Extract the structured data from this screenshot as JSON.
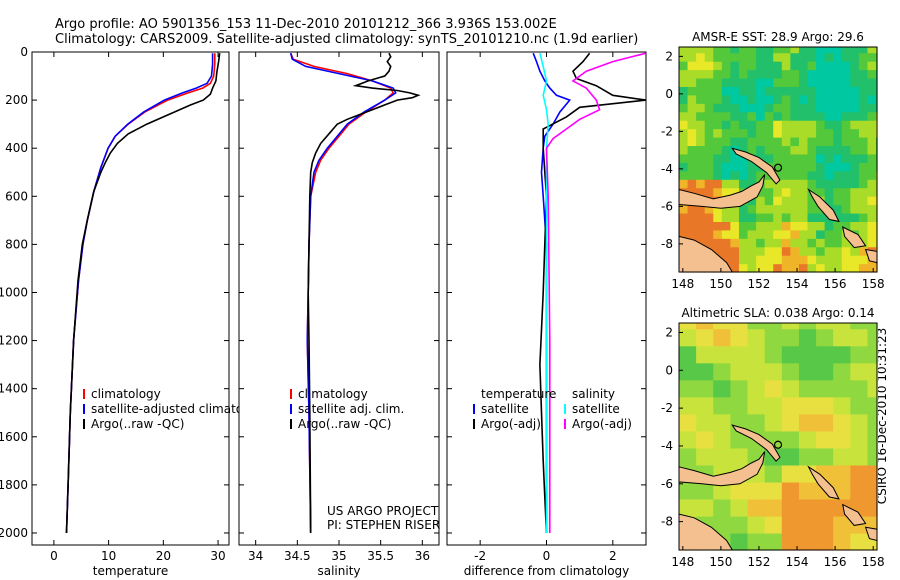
{
  "header": {
    "line1": "Argo profile: AO 5901356_153 11-Dec-2010 20101212_366 3.936S 153.002E",
    "line2": "Climatology: CARS2009. Satellite-adjusted climatology: synTS_20101210.nc (1.9d earlier)"
  },
  "colors": {
    "climatology": "#ff0000",
    "satellite": "#0000ff",
    "argo": "#000000",
    "satellite_diff": "#00ffff",
    "argo_adj_diff": "#ff00ff",
    "land": "#f4c090",
    "coast": "#000000"
  },
  "credit": "CSIRO 16-Dec-2010 10:31:23",
  "chart_data": [
    {
      "id": "temperature",
      "type": "line",
      "xlabel": "temperature",
      "ylabel": "",
      "xlim": [
        -4,
        32
      ],
      "ylim": [
        2050,
        0
      ],
      "xticks": [
        0,
        10,
        20,
        30
      ],
      "yticks": [
        0,
        200,
        400,
        600,
        800,
        1000,
        1200,
        1400,
        1600,
        1800,
        2000
      ],
      "legend": [
        "climatology",
        "satellite-adjusted climatology",
        "Argo(..raw -QC)"
      ],
      "legend_position": "lower-right",
      "series": [
        {
          "name": "climatology",
          "color": "#ff0000",
          "x": [
            29.4,
            29.4,
            29.2,
            28.6,
            27.2,
            24.5,
            20.8,
            16.6,
            13.6,
            11.2,
            9.9,
            8.6,
            7.3,
            6.1,
            5.3,
            4.5,
            3.6,
            3.0,
            2.6,
            2.3
          ],
          "y": [
            5,
            50,
            100,
            130,
            150,
            170,
            200,
            250,
            300,
            350,
            400,
            480,
            580,
            700,
            800,
            950,
            1200,
            1500,
            1800,
            2000
          ]
        },
        {
          "name": "satellite-adjusted climatology",
          "color": "#0000ff",
          "x": [
            29.0,
            29.0,
            28.8,
            28.0,
            26.0,
            23.5,
            20.2,
            16.4,
            13.5,
            11.2,
            9.9,
            8.6,
            7.3,
            6.1,
            5.3,
            4.5,
            3.6,
            3.0,
            2.6,
            2.3
          ],
          "y": [
            5,
            50,
            100,
            130,
            150,
            170,
            200,
            250,
            300,
            350,
            400,
            480,
            580,
            700,
            800,
            950,
            1200,
            1500,
            1800,
            2000
          ]
        },
        {
          "name": "Argo(..raw -QC)",
          "color": "#000000",
          "x": [
            30.3,
            30.1,
            29.8,
            29.6,
            29.0,
            28.6,
            27.3,
            25.0,
            21.0,
            17.0,
            13.6,
            11.6,
            10.3,
            9.4,
            8.6,
            7.3,
            6.1,
            5.2,
            4.4,
            3.6,
            3.0,
            2.6,
            2.3
          ],
          "y": [
            5,
            40,
            80,
            120,
            150,
            175,
            200,
            220,
            260,
            300,
            340,
            380,
            420,
            460,
            500,
            580,
            700,
            800,
            950,
            1200,
            1500,
            1800,
            2000
          ]
        }
      ]
    },
    {
      "id": "salinity",
      "type": "line",
      "xlabel": "salinity",
      "ylabel": "",
      "xlim": [
        33.8,
        36.2
      ],
      "ylim": [
        2050,
        0
      ],
      "xticks": [
        34,
        34.5,
        35,
        35.5,
        36
      ],
      "legend": [
        "climatology",
        "satellite adj. clim.",
        "Argo(..raw -QC)"
      ],
      "legend_position": "lower-right",
      "annotation": [
        "US ARGO PROJECT",
        "PI: STEPHEN RISER"
      ],
      "series": [
        {
          "name": "climatology",
          "color": "#ff0000",
          "x": [
            34.42,
            34.45,
            34.7,
            35.1,
            35.4,
            35.62,
            35.65,
            35.55,
            35.32,
            35.12,
            35.0,
            34.88,
            34.78,
            34.72,
            34.66,
            34.64,
            34.63,
            34.62,
            34.64,
            34.66
          ],
          "y": [
            5,
            30,
            60,
            90,
            120,
            150,
            170,
            200,
            250,
            300,
            350,
            400,
            450,
            500,
            600,
            800,
            1000,
            1200,
            1500,
            2000
          ]
        },
        {
          "name": "satellite adj. clim.",
          "color": "#0000ff",
          "x": [
            34.42,
            34.44,
            34.6,
            35.0,
            35.4,
            35.65,
            35.68,
            35.55,
            35.3,
            35.1,
            34.98,
            34.86,
            34.76,
            34.7,
            34.66,
            34.64,
            34.63,
            34.62,
            34.64,
            34.66
          ],
          "y": [
            5,
            30,
            60,
            90,
            120,
            150,
            170,
            200,
            250,
            300,
            350,
            400,
            450,
            500,
            600,
            800,
            1000,
            1200,
            1500,
            2000
          ]
        },
        {
          "name": "Argo(..raw -QC)",
          "color": "#000000",
          "x": [
            35.6,
            35.62,
            35.58,
            35.62,
            35.6,
            35.55,
            35.35,
            35.2,
            35.4,
            35.7,
            35.85,
            35.95,
            35.88,
            35.7,
            35.55,
            35.4,
            35.25,
            35.1,
            34.98,
            34.88,
            34.78,
            34.72,
            34.68,
            34.66,
            34.65,
            34.64,
            34.63,
            34.64,
            34.65,
            34.66
          ],
          "y": [
            5,
            20,
            40,
            60,
            80,
            100,
            120,
            140,
            150,
            160,
            170,
            180,
            190,
            200,
            220,
            240,
            260,
            280,
            300,
            340,
            380,
            420,
            460,
            500,
            600,
            800,
            1000,
            1200,
            1500,
            2000
          ]
        }
      ]
    },
    {
      "id": "difference",
      "type": "line",
      "xlabel": "difference from climatology",
      "ylabel": "",
      "xlim": [
        -3,
        3
      ],
      "ylim": [
        2050,
        0
      ],
      "xticks": [
        -2,
        0,
        2
      ],
      "legend_groups": [
        {
          "title": "temperature",
          "items": [
            "satellite",
            "Argo(-adj)"
          ]
        },
        {
          "title": "salinity",
          "items": [
            "satellite",
            "Argo(-adj)"
          ]
        }
      ],
      "legend_position": "lower-right",
      "series": [
        {
          "name": "temperature satellite",
          "color": "#0000ff",
          "x": [
            -0.4,
            -0.3,
            -0.2,
            -0.05,
            0.1,
            0.3,
            0.7,
            0.4,
            0.2,
            -0.05,
            -0.1,
            -0.15,
            -0.1,
            -0.05,
            0.0,
            0.0,
            0.0
          ],
          "y": [
            5,
            40,
            80,
            120,
            150,
            180,
            200,
            250,
            300,
            350,
            400,
            500,
            600,
            700,
            800,
            1200,
            2000
          ]
        },
        {
          "name": "temperature Argo(-adj)",
          "color": "#000000",
          "x": [
            1.3,
            1.1,
            0.8,
            0.9,
            1.5,
            2.0,
            3.0,
            1.0,
            0.6,
            -0.1,
            -0.1,
            -0.05,
            0.0,
            -0.05,
            -0.1,
            -0.2,
            -0.15,
            -0.1,
            -0.05,
            0.0
          ],
          "y": [
            5,
            40,
            80,
            110,
            140,
            180,
            200,
            230,
            270,
            320,
            400,
            500,
            600,
            800,
            1000,
            1300,
            1500,
            1700,
            1850,
            2000
          ]
        },
        {
          "name": "salinity satellite",
          "color": "#00ffff",
          "x": [
            -0.2,
            -0.1,
            0.0,
            -0.1,
            0.0,
            0.05,
            0.0,
            0.0,
            0.0,
            0.0
          ],
          "y": [
            5,
            60,
            120,
            180,
            240,
            300,
            400,
            600,
            1200,
            2000
          ]
        },
        {
          "name": "salinity Argo(-adj)",
          "color": "#ff00ff",
          "x": [
            3.0,
            2.0,
            1.2,
            0.8,
            1.2,
            1.5,
            1.6,
            1.0,
            0.6,
            0.2,
            0.0,
            0.05,
            0.1,
            0.1
          ],
          "y": [
            5,
            40,
            80,
            120,
            150,
            200,
            240,
            280,
            320,
            360,
            400,
            600,
            1200,
            2000
          ]
        }
      ]
    },
    {
      "id": "sst-map",
      "type": "heatmap",
      "title": "AMSR-E SST: 28.9 Argo: 29.6",
      "xlim": [
        147.8,
        158.2
      ],
      "ylim": [
        -9.5,
        2.5
      ],
      "xticks": [
        148,
        150,
        152,
        154,
        156,
        158
      ],
      "yticks": [
        2,
        0,
        -2,
        -4,
        -6,
        -8
      ],
      "marker": {
        "lon": 153.002,
        "lat": -3.936
      }
    },
    {
      "id": "sla-map",
      "type": "heatmap",
      "title": "Altimetric SLA: 0.038 Argo: 0.14",
      "xlim": [
        147.8,
        158.2
      ],
      "ylim": [
        -9.5,
        2.5
      ],
      "xticks": [
        148,
        150,
        152,
        154,
        156,
        158
      ],
      "yticks": [
        2,
        0,
        -2,
        -4,
        -6,
        -8
      ],
      "marker": {
        "lon": 153.002,
        "lat": -3.936
      }
    }
  ]
}
